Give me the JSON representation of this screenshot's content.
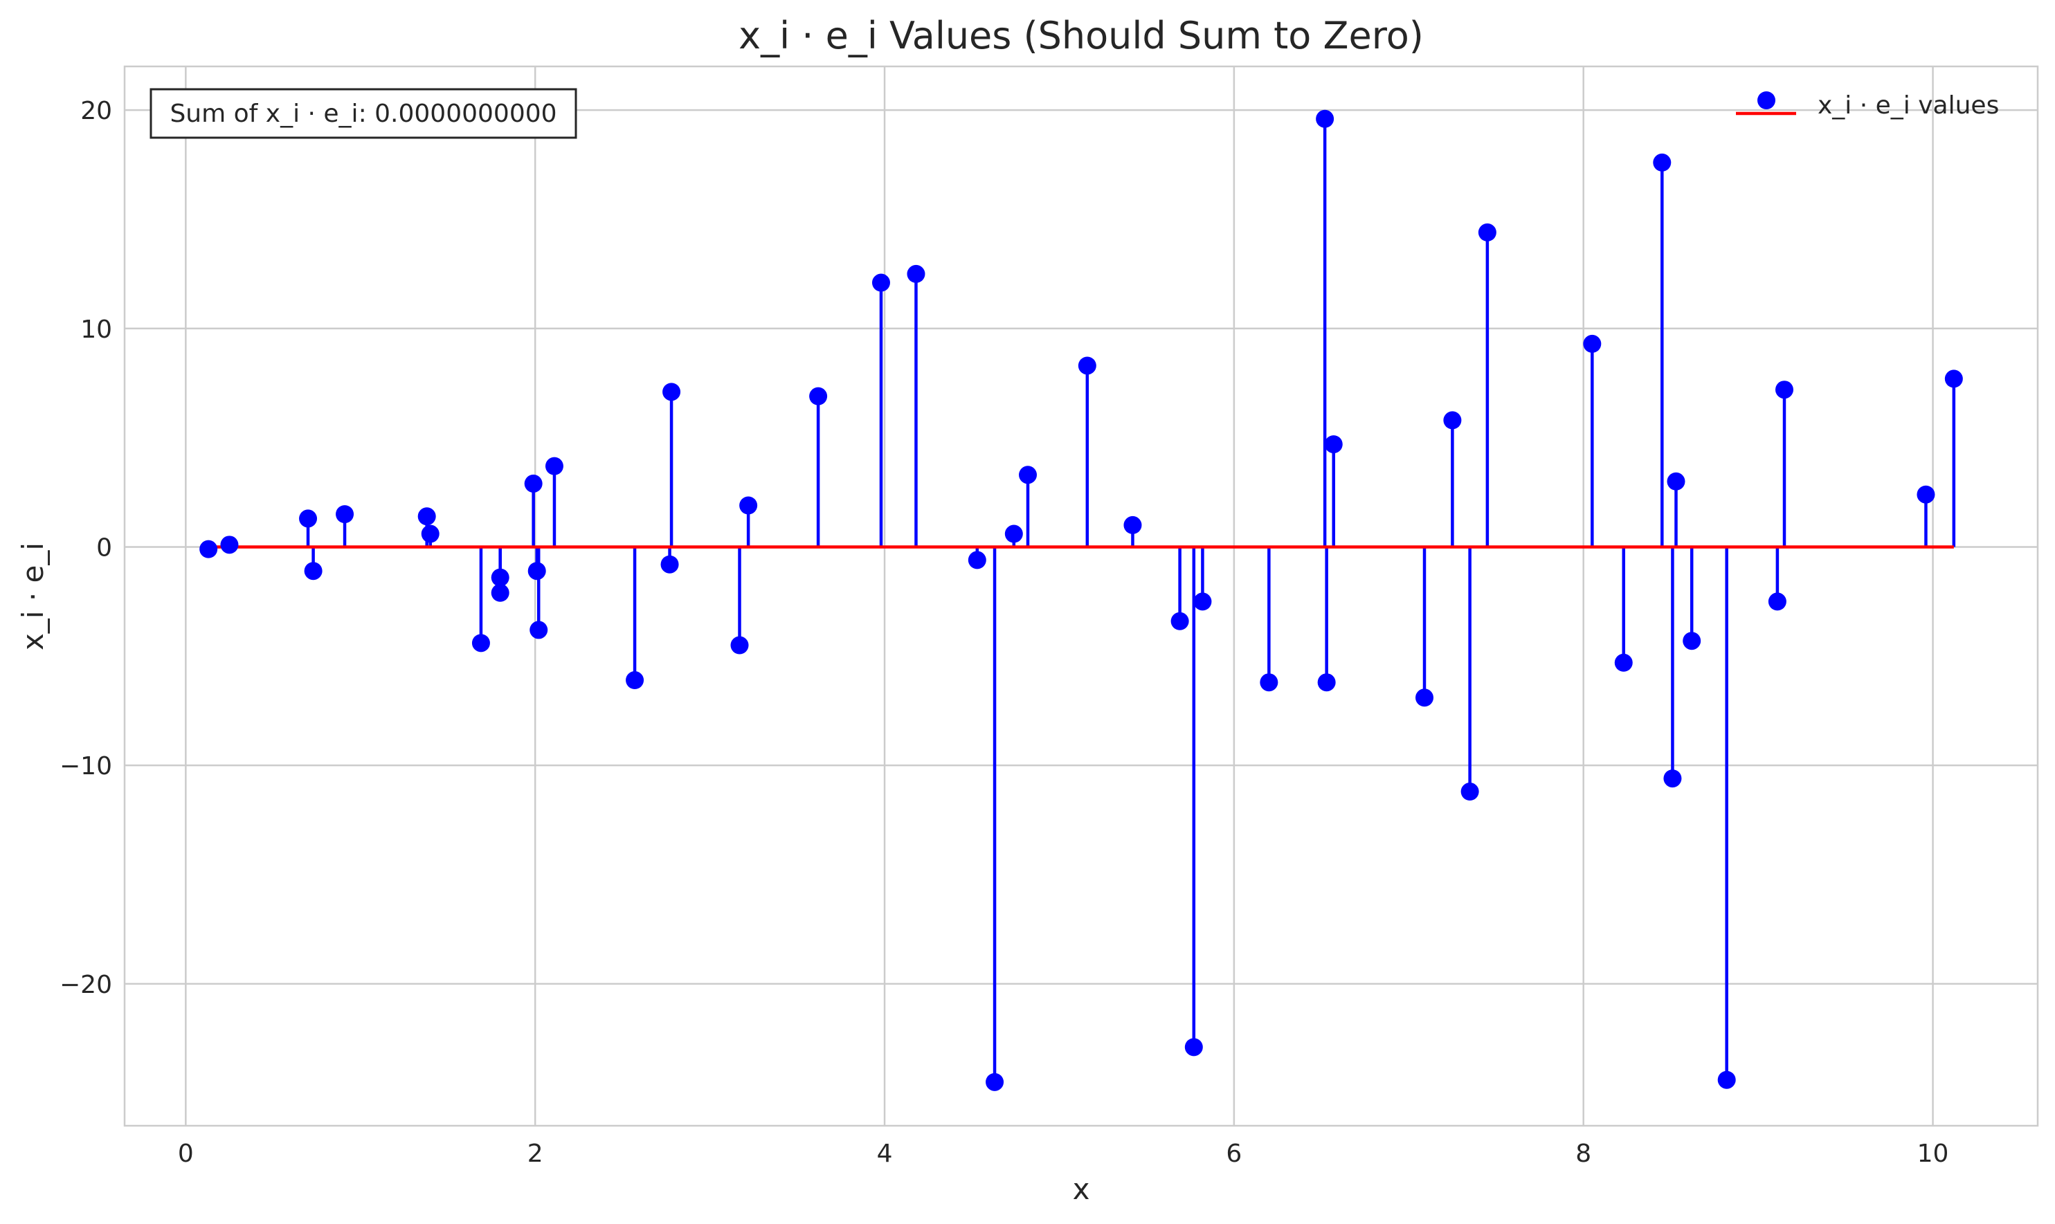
{
  "chart_data": {
    "type": "scatter",
    "style": "stem",
    "title": "x_i · e_i Values (Should Sum to Zero)",
    "xlabel": "x",
    "ylabel": "x_i · e_i",
    "xlim": [
      -0.35,
      10.6
    ],
    "ylim": [
      -26.5,
      22
    ],
    "xticks": [
      0,
      2,
      4,
      6,
      8,
      10
    ],
    "yticks": [
      -20,
      -10,
      0,
      10,
      20
    ],
    "xtick_labels": [
      "0",
      "2",
      "4",
      "6",
      "8",
      "10"
    ],
    "ytick_labels": [
      "−20",
      "−10",
      "0",
      "10",
      "20"
    ],
    "grid": true,
    "legend": {
      "position": "top-right",
      "entries": [
        "x_i · e_i values"
      ]
    },
    "annotation": "Sum of x_i · e_i: 0.0000000000",
    "baseline": {
      "y": 0,
      "x_range": [
        0.13,
        10.12
      ],
      "color": "#ff0000"
    },
    "colors": {
      "stem": "#0000ff",
      "marker": "#0000ff",
      "baseline": "#ff0000",
      "grid": "#cccccc"
    },
    "series": [
      {
        "name": "x_i · e_i values",
        "points": [
          [
            0.13,
            -0.1
          ],
          [
            0.25,
            0.1
          ],
          [
            0.7,
            1.3
          ],
          [
            0.73,
            -1.1
          ],
          [
            0.91,
            1.5
          ],
          [
            1.38,
            1.4
          ],
          [
            1.4,
            0.6
          ],
          [
            1.69,
            -4.4
          ],
          [
            1.8,
            -1.4
          ],
          [
            1.8,
            -2.1
          ],
          [
            1.99,
            2.9
          ],
          [
            2.01,
            -1.1
          ],
          [
            2.02,
            -3.8
          ],
          [
            2.11,
            3.7
          ],
          [
            2.57,
            -6.1
          ],
          [
            2.77,
            -0.8
          ],
          [
            2.78,
            7.1
          ],
          [
            3.17,
            -4.5
          ],
          [
            3.22,
            1.9
          ],
          [
            3.62,
            6.9
          ],
          [
            3.98,
            12.1
          ],
          [
            4.18,
            12.5
          ],
          [
            4.53,
            -0.6
          ],
          [
            4.63,
            -24.5
          ],
          [
            4.74,
            0.6
          ],
          [
            4.82,
            3.3
          ],
          [
            5.16,
            8.3
          ],
          [
            5.42,
            1.0
          ],
          [
            5.69,
            -3.4
          ],
          [
            5.77,
            -22.9
          ],
          [
            5.82,
            -2.5
          ],
          [
            6.2,
            -6.2
          ],
          [
            6.52,
            19.6
          ],
          [
            6.53,
            -6.2
          ],
          [
            6.57,
            4.7
          ],
          [
            7.09,
            -6.9
          ],
          [
            7.25,
            5.8
          ],
          [
            7.35,
            -11.2
          ],
          [
            7.45,
            14.4
          ],
          [
            8.05,
            9.3
          ],
          [
            8.23,
            -5.3
          ],
          [
            8.45,
            17.6
          ],
          [
            8.51,
            -10.6
          ],
          [
            8.53,
            3.0
          ],
          [
            8.62,
            -4.3
          ],
          [
            8.82,
            -24.4
          ],
          [
            9.11,
            -2.5
          ],
          [
            9.15,
            7.2
          ],
          [
            9.96,
            2.4
          ],
          [
            10.12,
            7.7
          ]
        ]
      }
    ]
  }
}
